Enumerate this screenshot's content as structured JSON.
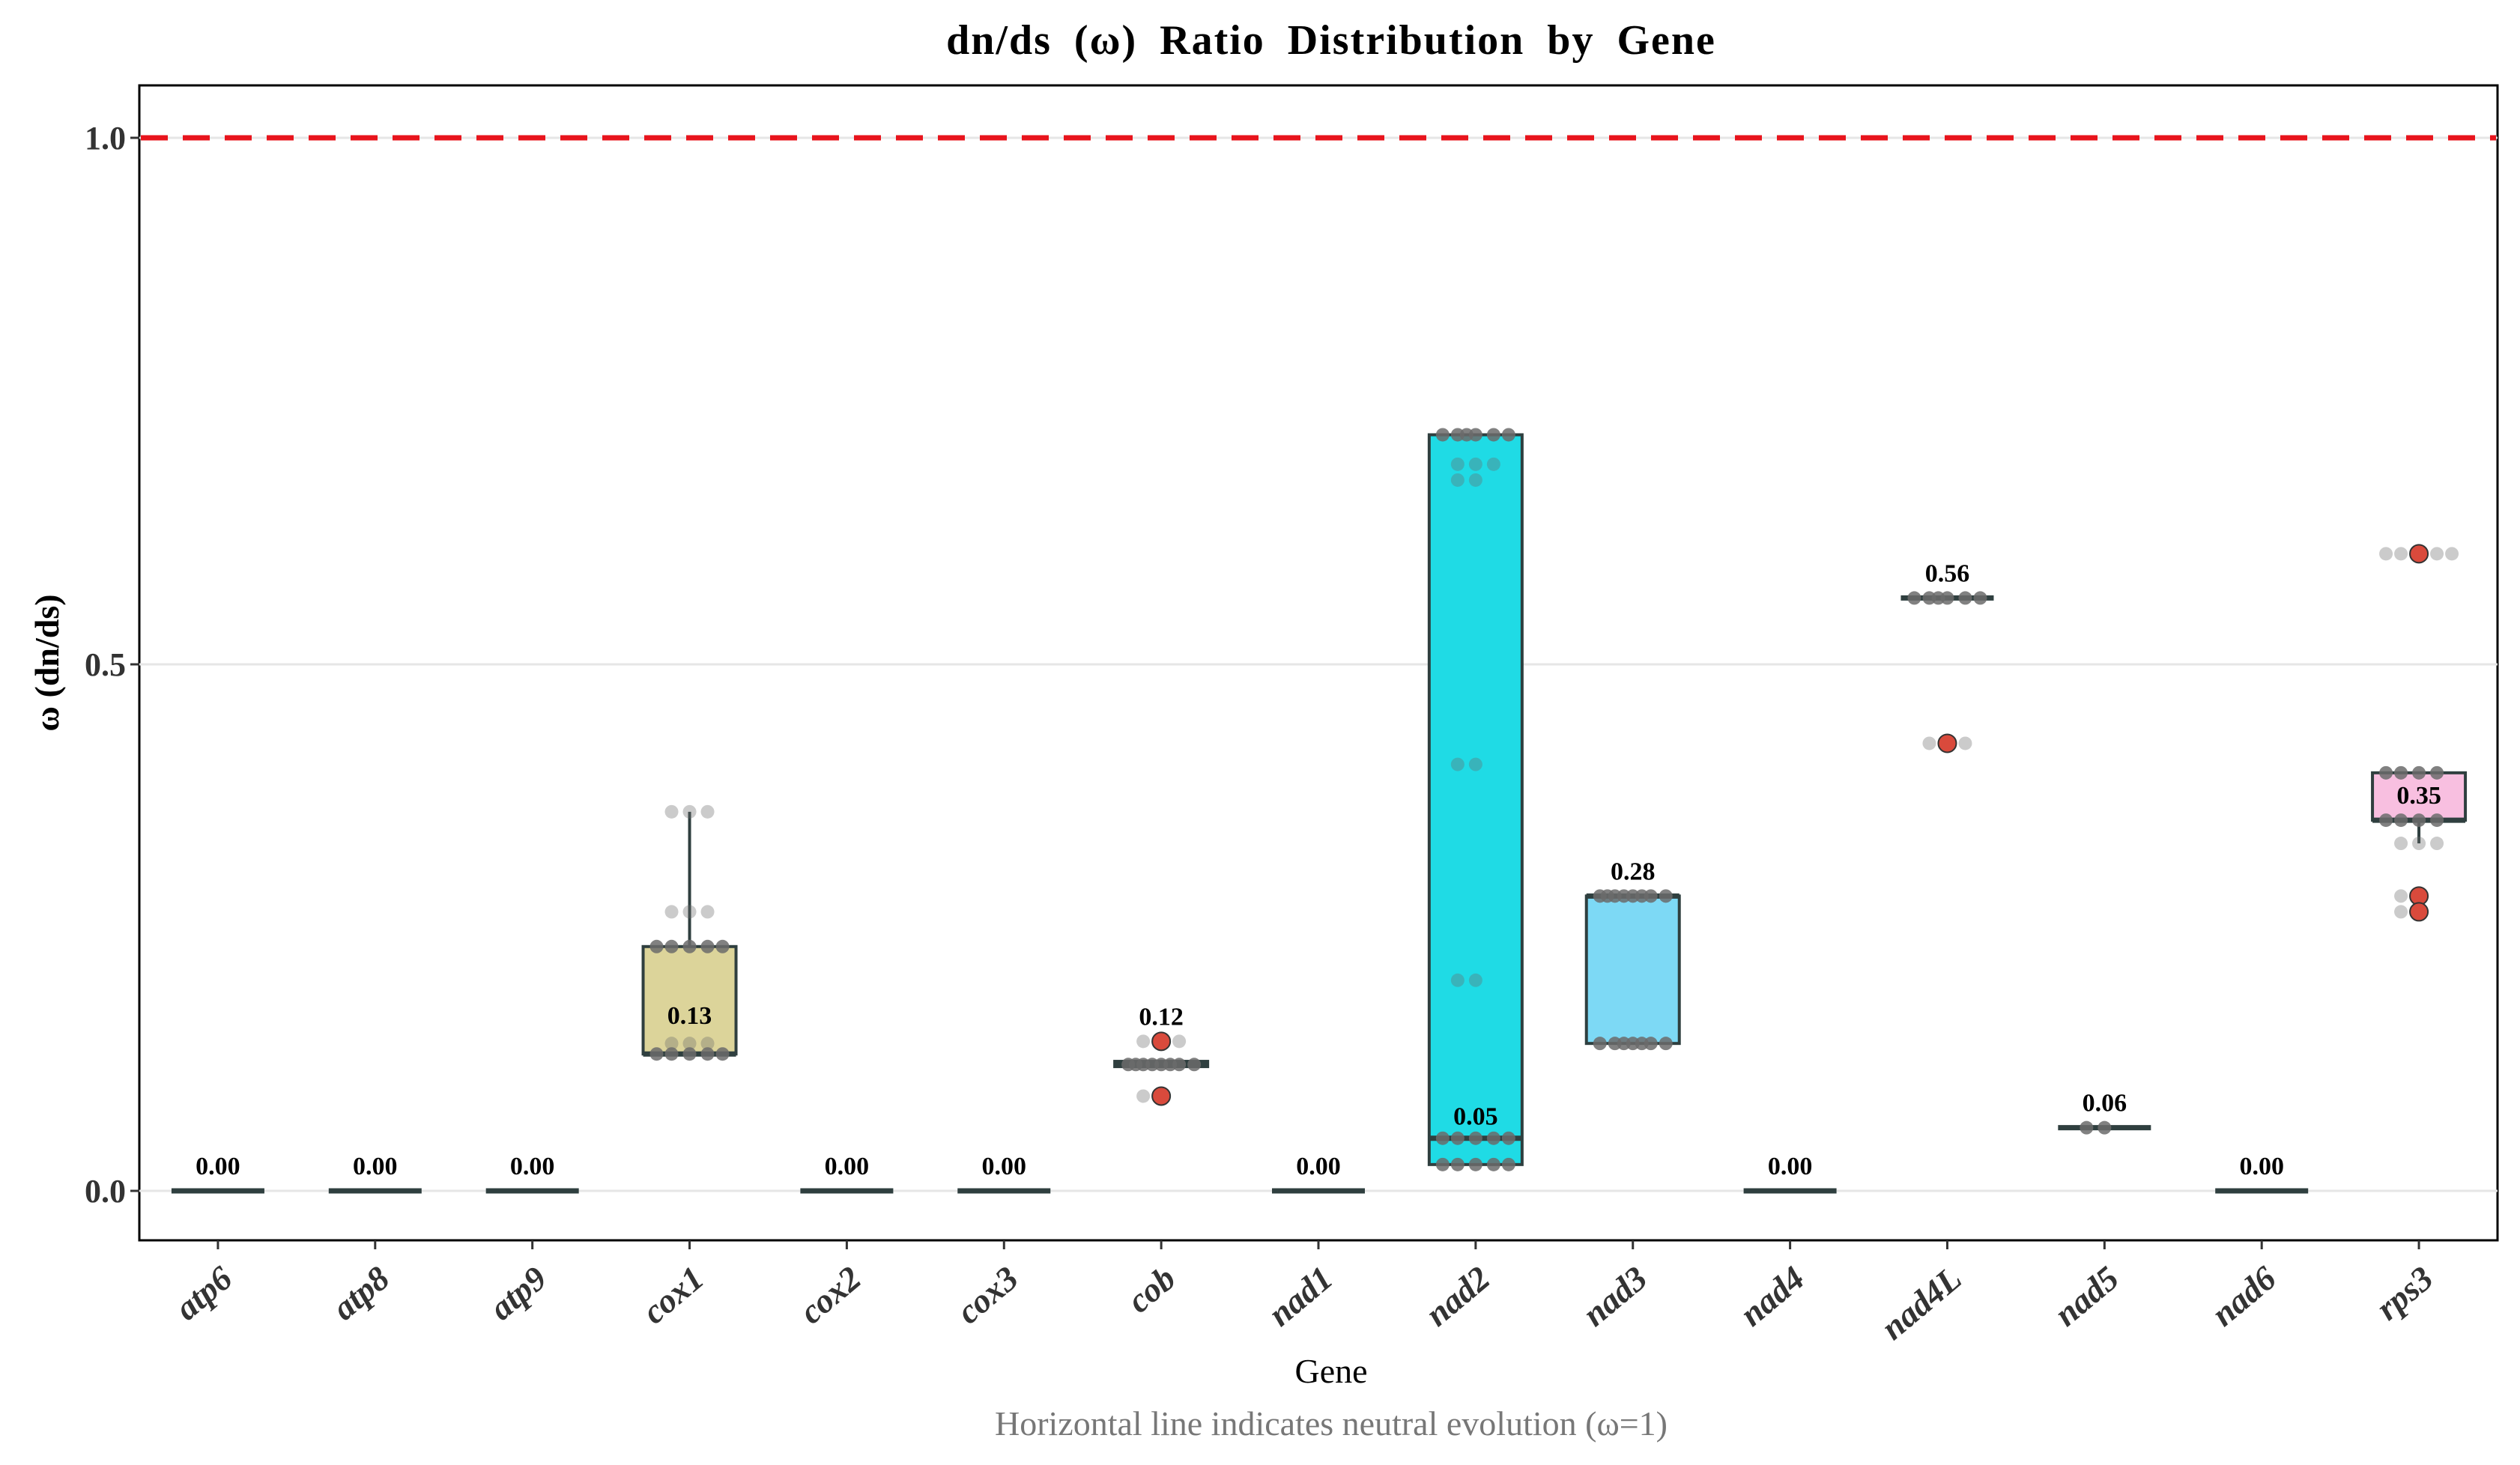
{
  "chart_data": {
    "type": "box",
    "title": "dn/ds  (ω)  Ratio  Distribution  by  Gene",
    "xlabel": "Gene",
    "ylabel": "ω (dn/ds)",
    "caption": "Horizontal line indicates neutral evolution (ω=1)",
    "ylim": [
      -0.05,
      1.05
    ],
    "yticks": [
      0.0,
      0.5,
      1.0
    ],
    "ytick_labels": [
      "0.0",
      "0.5",
      "1.0"
    ],
    "reference_line": {
      "y": 1.0,
      "color": "#e8141c",
      "style": "dashed"
    },
    "categories": [
      "atp6",
      "atp8",
      "atp9",
      "cox1",
      "cox2",
      "cox3",
      "cob",
      "nad1",
      "nad2",
      "nad3",
      "nad4",
      "nad4L",
      "nad5",
      "nad6",
      "rps3"
    ],
    "boxes": [
      {
        "gene": "atp6",
        "q1": 0.0,
        "median": 0.0,
        "q3": 0.0,
        "whisker_low": 0.0,
        "whisker_high": 0.0,
        "median_label": "0.00",
        "fill": "#cccccc",
        "outliers": [],
        "points": []
      },
      {
        "gene": "atp8",
        "q1": 0.0,
        "median": 0.0,
        "q3": 0.0,
        "whisker_low": 0.0,
        "whisker_high": 0.0,
        "median_label": "0.00",
        "fill": "#cccccc",
        "outliers": [],
        "points": []
      },
      {
        "gene": "atp9",
        "q1": 0.0,
        "median": 0.0,
        "q3": 0.0,
        "whisker_low": 0.0,
        "whisker_high": 0.0,
        "median_label": "0.00",
        "fill": "#cccccc",
        "outliers": [],
        "points": []
      },
      {
        "gene": "cox1",
        "q1": 0.13,
        "median": 0.13,
        "q3": 0.232,
        "whisker_low": 0.13,
        "whisker_high": 0.36,
        "median_label": "0.13",
        "fill": "#dcd49a",
        "outliers": [],
        "points": [
          0.36,
          0.36,
          0.36,
          0.265,
          0.265,
          0.265,
          0.232,
          0.232,
          0.232,
          0.232,
          0.232,
          0.14,
          0.14,
          0.14,
          0.13,
          0.13,
          0.13,
          0.13,
          0.13
        ]
      },
      {
        "gene": "cox2",
        "q1": 0.0,
        "median": 0.0,
        "q3": 0.0,
        "whisker_low": 0.0,
        "whisker_high": 0.0,
        "median_label": "0.00",
        "fill": "#cccccc",
        "outliers": [],
        "points": []
      },
      {
        "gene": "cox3",
        "q1": 0.0,
        "median": 0.0,
        "q3": 0.0,
        "whisker_low": 0.0,
        "whisker_high": 0.0,
        "median_label": "0.00",
        "fill": "#cccccc",
        "outliers": [],
        "points": []
      },
      {
        "gene": "cob",
        "q1": 0.118,
        "median": 0.12,
        "q3": 0.123,
        "whisker_low": 0.118,
        "whisker_high": 0.123,
        "median_label": "0.12",
        "fill": "#3fcfc8",
        "outliers": [
          0.142,
          0.09
        ],
        "points": [
          0.142,
          0.142,
          0.142,
          0.12,
          0.12,
          0.12,
          0.12,
          0.12,
          0.12,
          0.12,
          0.12,
          0.09,
          0.09
        ]
      },
      {
        "gene": "nad1",
        "q1": 0.0,
        "median": 0.0,
        "q3": 0.0,
        "whisker_low": 0.0,
        "whisker_high": 0.0,
        "median_label": "0.00",
        "fill": "#cccccc",
        "outliers": [],
        "points": []
      },
      {
        "gene": "nad2",
        "q1": 0.025,
        "median": 0.05,
        "q3": 0.718,
        "whisker_low": 0.025,
        "whisker_high": 0.718,
        "median_label": "0.05",
        "fill": "#1fdbe5",
        "outliers": [],
        "points": [
          0.718,
          0.718,
          0.718,
          0.718,
          0.718,
          0.718,
          0.69,
          0.69,
          0.69,
          0.675,
          0.675,
          0.405,
          0.405,
          0.2,
          0.2,
          0.05,
          0.05,
          0.05,
          0.05,
          0.05,
          0.025,
          0.025,
          0.025,
          0.025,
          0.025
        ]
      },
      {
        "gene": "nad3",
        "q1": 0.14,
        "median": 0.28,
        "q3": 0.28,
        "whisker_low": 0.14,
        "whisker_high": 0.28,
        "median_label": "0.28",
        "fill": "#7dd9f5",
        "outliers": [],
        "points": [
          0.28,
          0.28,
          0.28,
          0.28,
          0.28,
          0.28,
          0.28,
          0.28,
          0.14,
          0.14,
          0.14,
          0.14,
          0.14,
          0.14,
          0.14
        ]
      },
      {
        "gene": "nad4",
        "q1": 0.0,
        "median": 0.0,
        "q3": 0.0,
        "whisker_low": 0.0,
        "whisker_high": 0.0,
        "median_label": "0.00",
        "fill": "#cccccc",
        "outliers": [],
        "points": []
      },
      {
        "gene": "nad4L",
        "q1": 0.563,
        "median": 0.563,
        "q3": 0.563,
        "whisker_low": 0.563,
        "whisker_high": 0.563,
        "median_label": "0.56",
        "fill": "#cccccc",
        "outliers": [
          0.425
        ],
        "points": [
          0.563,
          0.563,
          0.563,
          0.563,
          0.563,
          0.563,
          0.425,
          0.425,
          0.425
        ]
      },
      {
        "gene": "nad5",
        "q1": 0.06,
        "median": 0.06,
        "q3": 0.06,
        "whisker_low": 0.06,
        "whisker_high": 0.06,
        "median_label": "0.06",
        "fill": "#cccccc",
        "outliers": [],
        "points": [
          0.06,
          0.06
        ]
      },
      {
        "gene": "nad6",
        "q1": 0.0,
        "median": 0.0,
        "q3": 0.0,
        "whisker_low": 0.0,
        "whisker_high": 0.0,
        "median_label": "0.00",
        "fill": "#cccccc",
        "outliers": [],
        "points": []
      },
      {
        "gene": "rps3",
        "q1": 0.352,
        "median": 0.352,
        "q3": 0.397,
        "whisker_low": 0.33,
        "whisker_high": 0.397,
        "median_label": "0.35",
        "fill": "#f8bfe0",
        "outliers": [
          0.605,
          0.28,
          0.265
        ],
        "points": [
          0.605,
          0.605,
          0.605,
          0.605,
          0.605,
          0.397,
          0.397,
          0.397,
          0.397,
          0.352,
          0.352,
          0.352,
          0.352,
          0.33,
          0.33,
          0.33,
          0.28,
          0.28,
          0.265,
          0.265
        ]
      }
    ],
    "colors": {
      "box_stroke": "#2f3f3f",
      "point": "#6b6b6b",
      "outlier": "#d94a3c",
      "gridline": "#e6e6e6",
      "panel_border": "#000000"
    }
  }
}
